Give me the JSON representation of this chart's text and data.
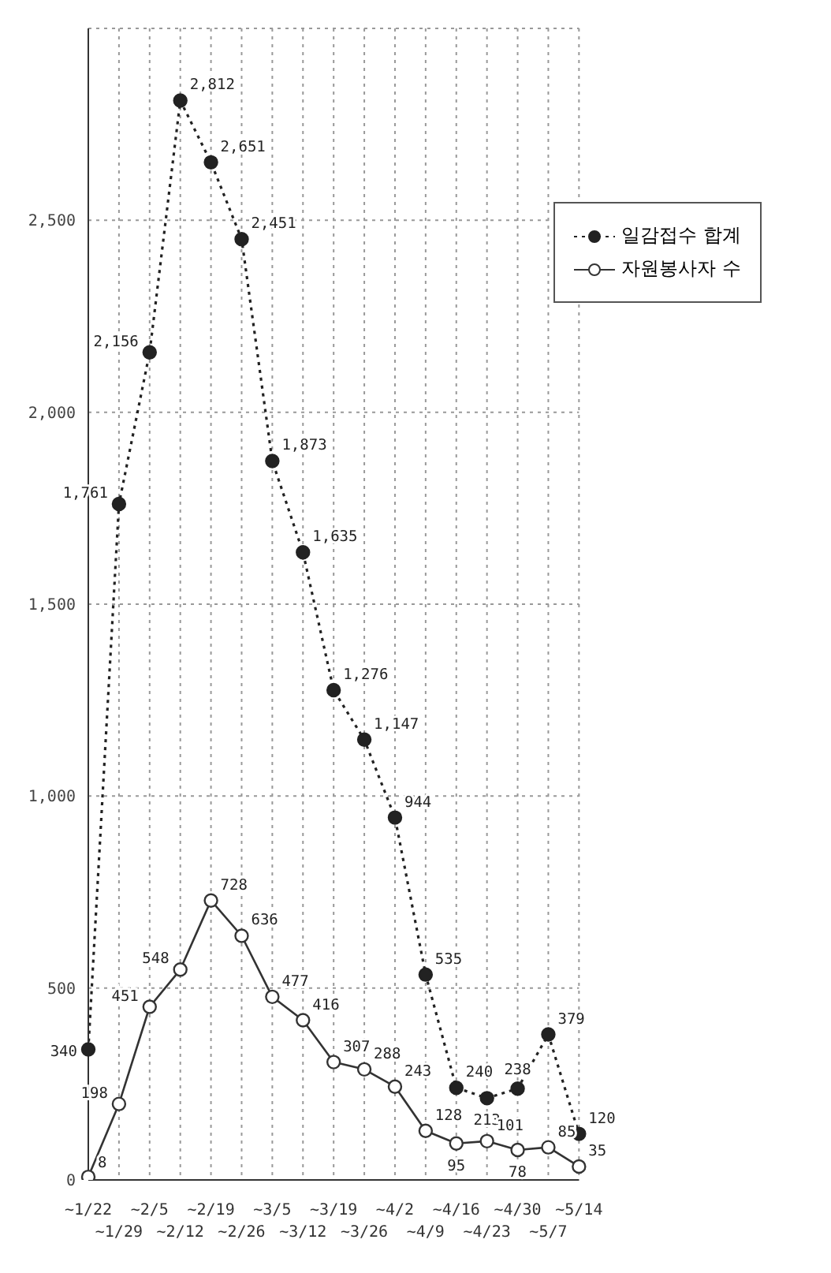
{
  "chart_data": {
    "type": "line",
    "categories": [
      "~1/22",
      "~1/29",
      "~2/5",
      "~2/12",
      "~2/19",
      "~2/26",
      "~3/5",
      "~3/12",
      "~3/19",
      "~3/26",
      "~4/2",
      "~4/9",
      "~4/16",
      "~4/23",
      "~4/30",
      "~5/7",
      "~5/14"
    ],
    "series": [
      {
        "name": "일감접수 합계",
        "color": "#222222",
        "line_style": "dotted",
        "values": [
          340,
          1761,
          2156,
          2812,
          2651,
          2451,
          1873,
          1635,
          1276,
          1147,
          944,
          535,
          240,
          213,
          238,
          379,
          120
        ],
        "value_labels": [
          "340",
          "1,761",
          "2,156",
          "2,812",
          "2,651",
          "2,451",
          "1,873",
          "1,635",
          "1,276",
          "1,147",
          "944",
          "535",
          "240",
          "213",
          "238",
          "379",
          "120"
        ]
      },
      {
        "name": "자원봉사자 수",
        "color": "#333333",
        "line_style": "solid",
        "values": [
          8,
          198,
          451,
          548,
          728,
          636,
          477,
          416,
          307,
          288,
          243,
          128,
          95,
          101,
          78,
          85,
          35
        ],
        "value_labels": [
          "8",
          "198",
          "451",
          "548",
          "728",
          "636",
          "477",
          "416",
          "307",
          "288",
          "243",
          "128",
          "95",
          "101",
          "78",
          "85",
          "35"
        ]
      }
    ],
    "ylim": [
      0,
      3000
    ],
    "yticks": [
      0,
      500,
      {
        "value": 1000,
        "label": "1,000"
      },
      {
        "value": 1500,
        "label": "1,500"
      },
      {
        "value": 2000,
        "label": "2,000"
      },
      {
        "value": 2500,
        "label": "2,500"
      }
    ],
    "grid": true,
    "legend": "top right",
    "marker": "circle"
  }
}
